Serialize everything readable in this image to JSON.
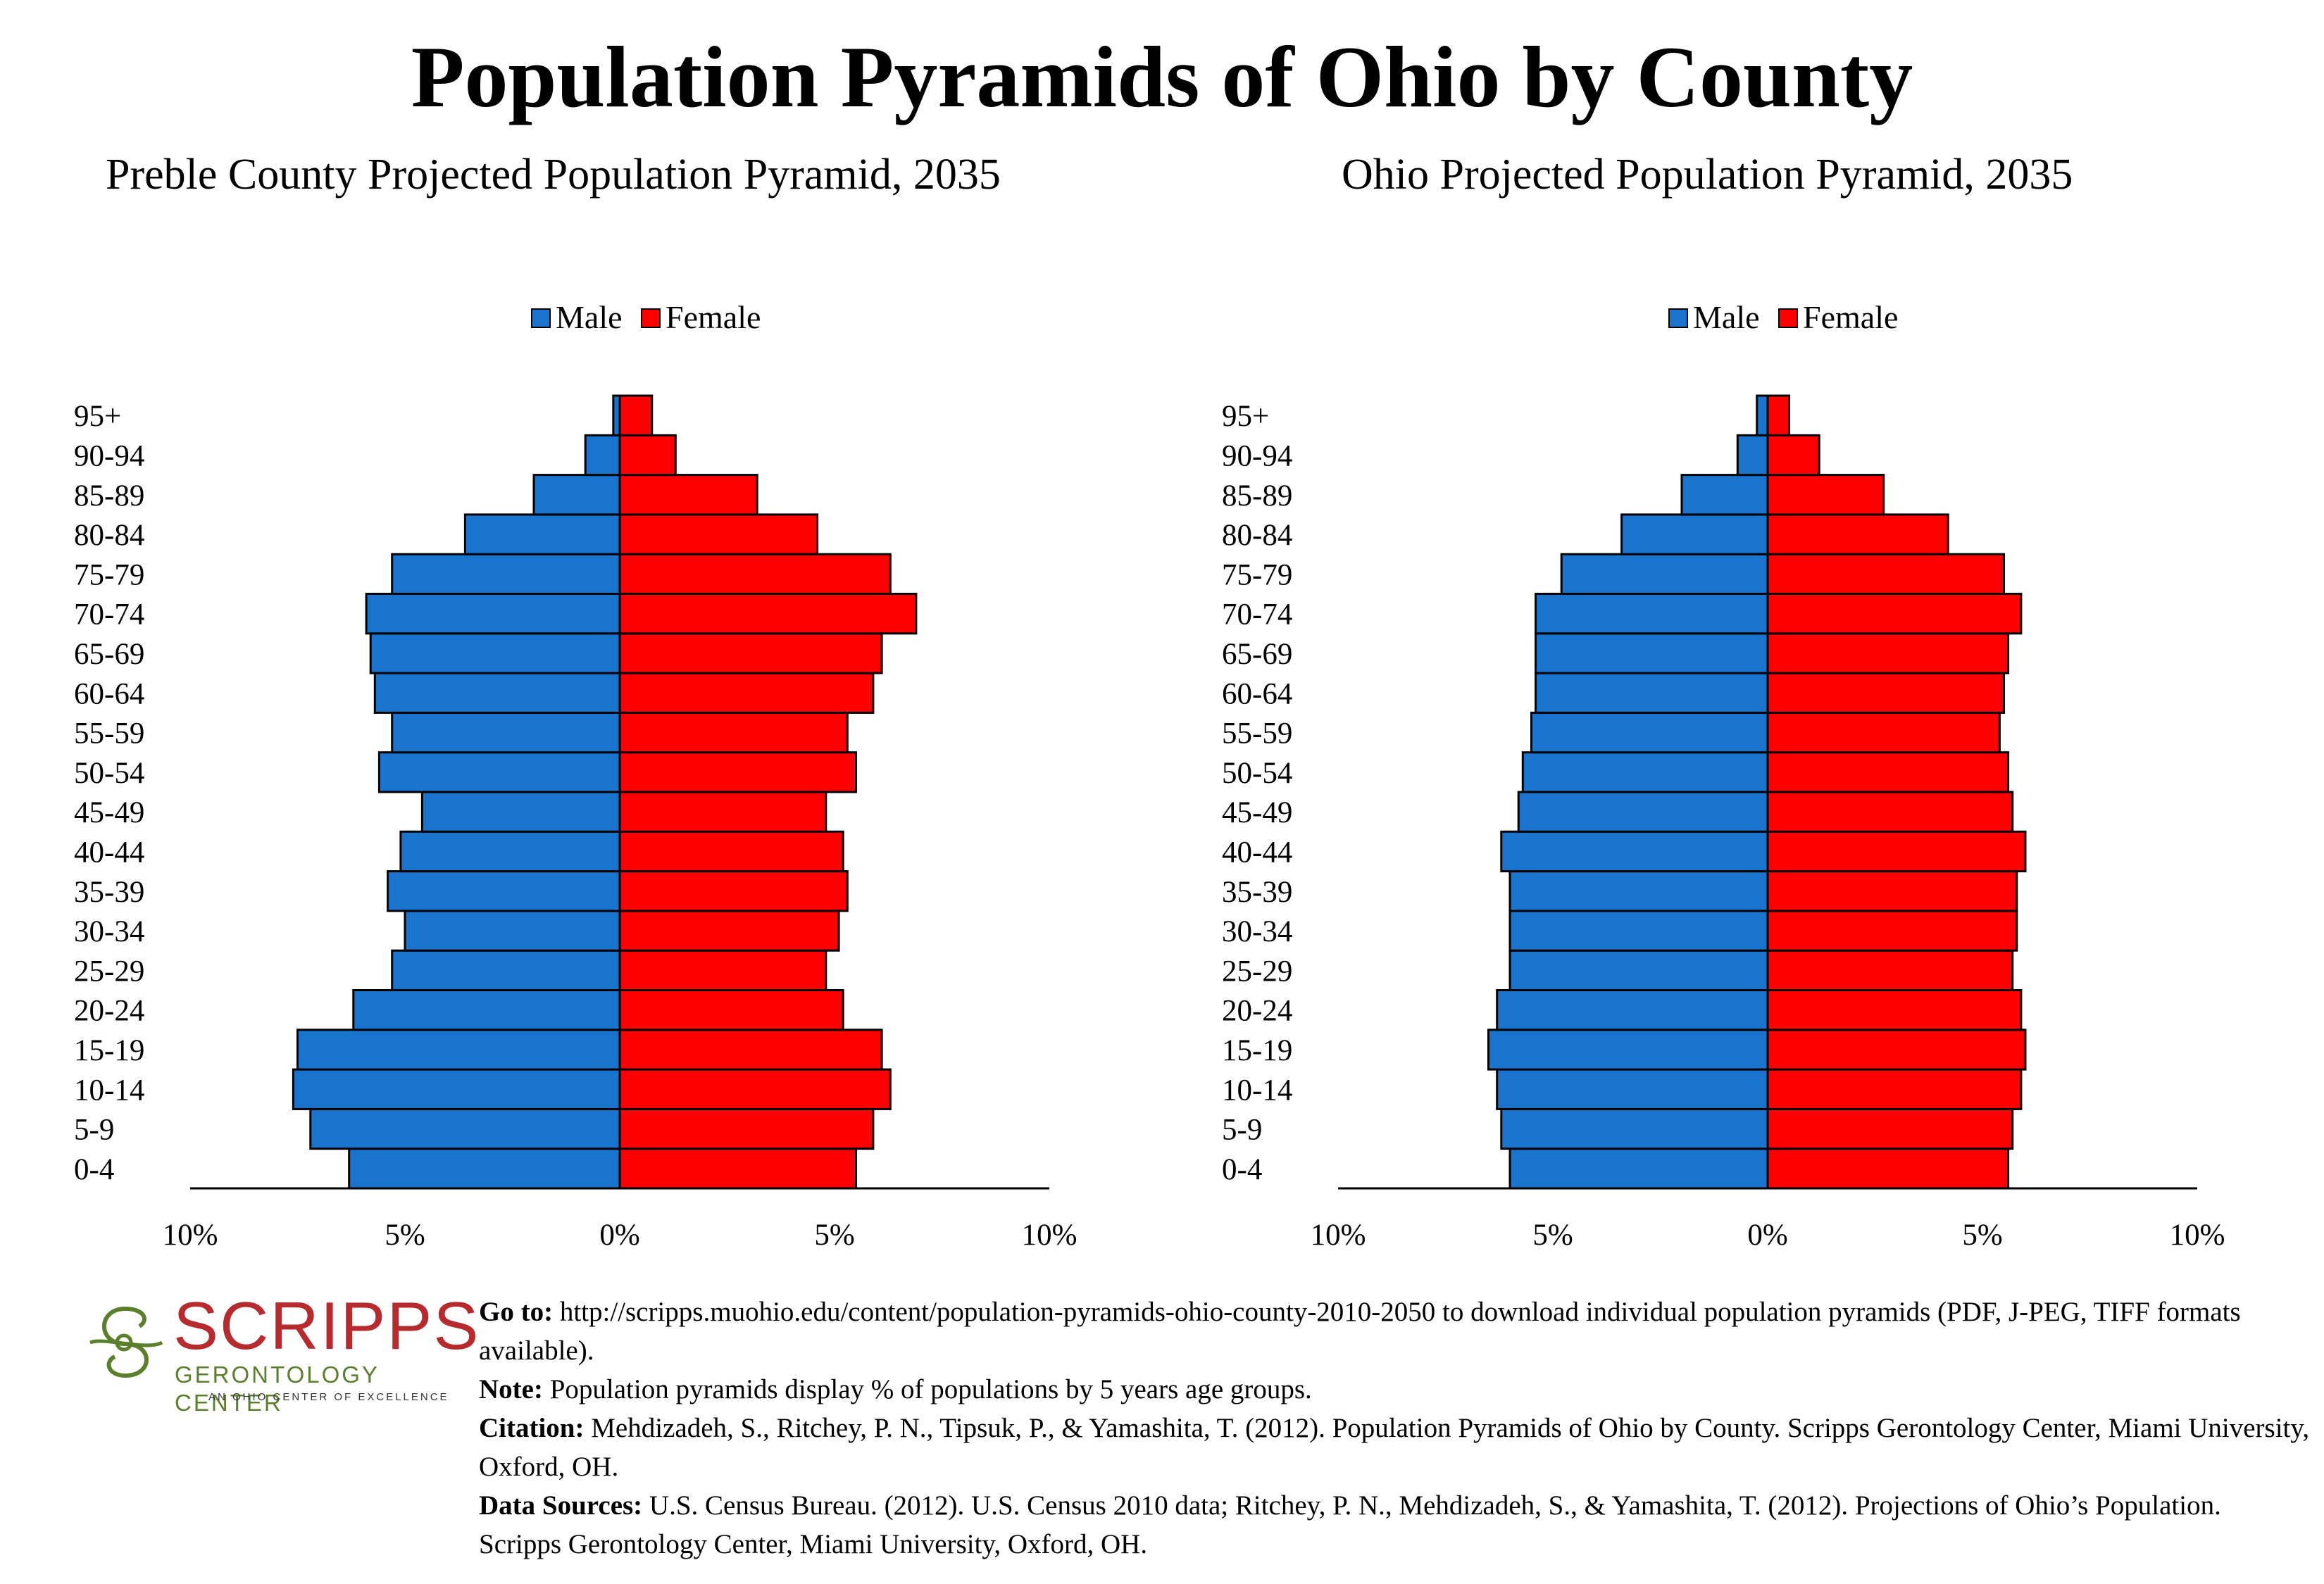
{
  "page_title": "Population Pyramids of Ohio by County",
  "chart_data": [
    {
      "type": "bar",
      "orientation": "horizontal-pyramid",
      "title": "Preble County Projected Population Pyramid, 2035",
      "categories": [
        "0-4",
        "5-9",
        "10-14",
        "15-19",
        "20-24",
        "25-29",
        "30-34",
        "35-39",
        "40-44",
        "45-49",
        "50-54",
        "55-59",
        "60-64",
        "65-69",
        "70-74",
        "75-79",
        "80-84",
        "85-89",
        "90-94",
        "95+"
      ],
      "series": [
        {
          "name": "Male",
          "color": "#1874cd",
          "values": [
            6.3,
            7.2,
            7.6,
            7.5,
            6.2,
            5.3,
            5.0,
            5.4,
            5.1,
            4.6,
            5.6,
            5.3,
            5.7,
            5.8,
            5.9,
            5.3,
            3.6,
            2.0,
            0.8,
            0.15
          ]
        },
        {
          "name": "Female",
          "color": "#ff0000",
          "values": [
            5.5,
            5.9,
            6.3,
            6.1,
            5.2,
            4.8,
            5.1,
            5.3,
            5.2,
            4.8,
            5.5,
            5.3,
            5.9,
            6.1,
            6.9,
            6.3,
            4.6,
            3.2,
            1.3,
            0.75
          ]
        }
      ],
      "xlabel": "",
      "ylabel": "",
      "xlim": [
        -10,
        10
      ],
      "x_tick_labels": [
        "10%",
        "5%",
        "0%",
        "5%",
        "10%"
      ],
      "legend": "top-center",
      "grid": false
    },
    {
      "type": "bar",
      "orientation": "horizontal-pyramid",
      "title": "Ohio Projected Population Pyramid, 2035",
      "categories": [
        "0-4",
        "5-9",
        "10-14",
        "15-19",
        "20-24",
        "25-29",
        "30-34",
        "35-39",
        "40-44",
        "45-49",
        "50-54",
        "55-59",
        "60-64",
        "65-69",
        "70-74",
        "75-79",
        "80-84",
        "85-89",
        "90-94",
        "95+"
      ],
      "series": [
        {
          "name": "Male",
          "color": "#1874cd",
          "values": [
            6.0,
            6.2,
            6.3,
            6.5,
            6.3,
            6.0,
            6.0,
            6.0,
            6.2,
            5.8,
            5.7,
            5.5,
            5.4,
            5.4,
            5.4,
            4.8,
            3.4,
            2.0,
            0.7,
            0.25
          ]
        },
        {
          "name": "Female",
          "color": "#ff0000",
          "values": [
            5.6,
            5.7,
            5.9,
            6.0,
            5.9,
            5.7,
            5.8,
            5.8,
            6.0,
            5.7,
            5.6,
            5.4,
            5.5,
            5.6,
            5.9,
            5.5,
            4.2,
            2.7,
            1.2,
            0.5
          ]
        }
      ],
      "xlabel": "",
      "ylabel": "",
      "xlim": [
        -10,
        10
      ],
      "x_tick_labels": [
        "10%",
        "5%",
        "0%",
        "5%",
        "10%"
      ],
      "legend": "top-center",
      "grid": false
    }
  ],
  "logo": {
    "name": "SCRIPPS",
    "subtitle": "GERONTOLOGY CENTER",
    "tagline": "AN OHIO CENTER OF EXCELLENCE",
    "red": "#b72a2e",
    "green": "#5c7f2d"
  },
  "footnotes": {
    "goto_label": "Go to:",
    "goto_text": " http://scripps.muohio.edu/content/population-pyramids-ohio-county-2010-2050 to download individual population pyramids (PDF, J-PEG, TIFF formats available).",
    "note_label": "Note:",
    "note_text": " Population pyramids display % of populations by 5 years age groups.",
    "citation_label": "Citation:",
    "citation_text": " Mehdizadeh, S., Ritchey, P. N., Tipsuk, P., & Yamashita, T. (2012). Population Pyramids of Ohio by County. Scripps Gerontology Center, Miami University, Oxford, OH.",
    "sources_label": "Data Sources:",
    "sources_text": " U.S. Census Bureau. (2012). U.S. Census 2010 data; Ritchey, P. N., Mehdizadeh, S., & Yamashita, T. (2012). Projections of Ohio’s Population. Scripps Gerontology Center, Miami University, Oxford, OH."
  }
}
